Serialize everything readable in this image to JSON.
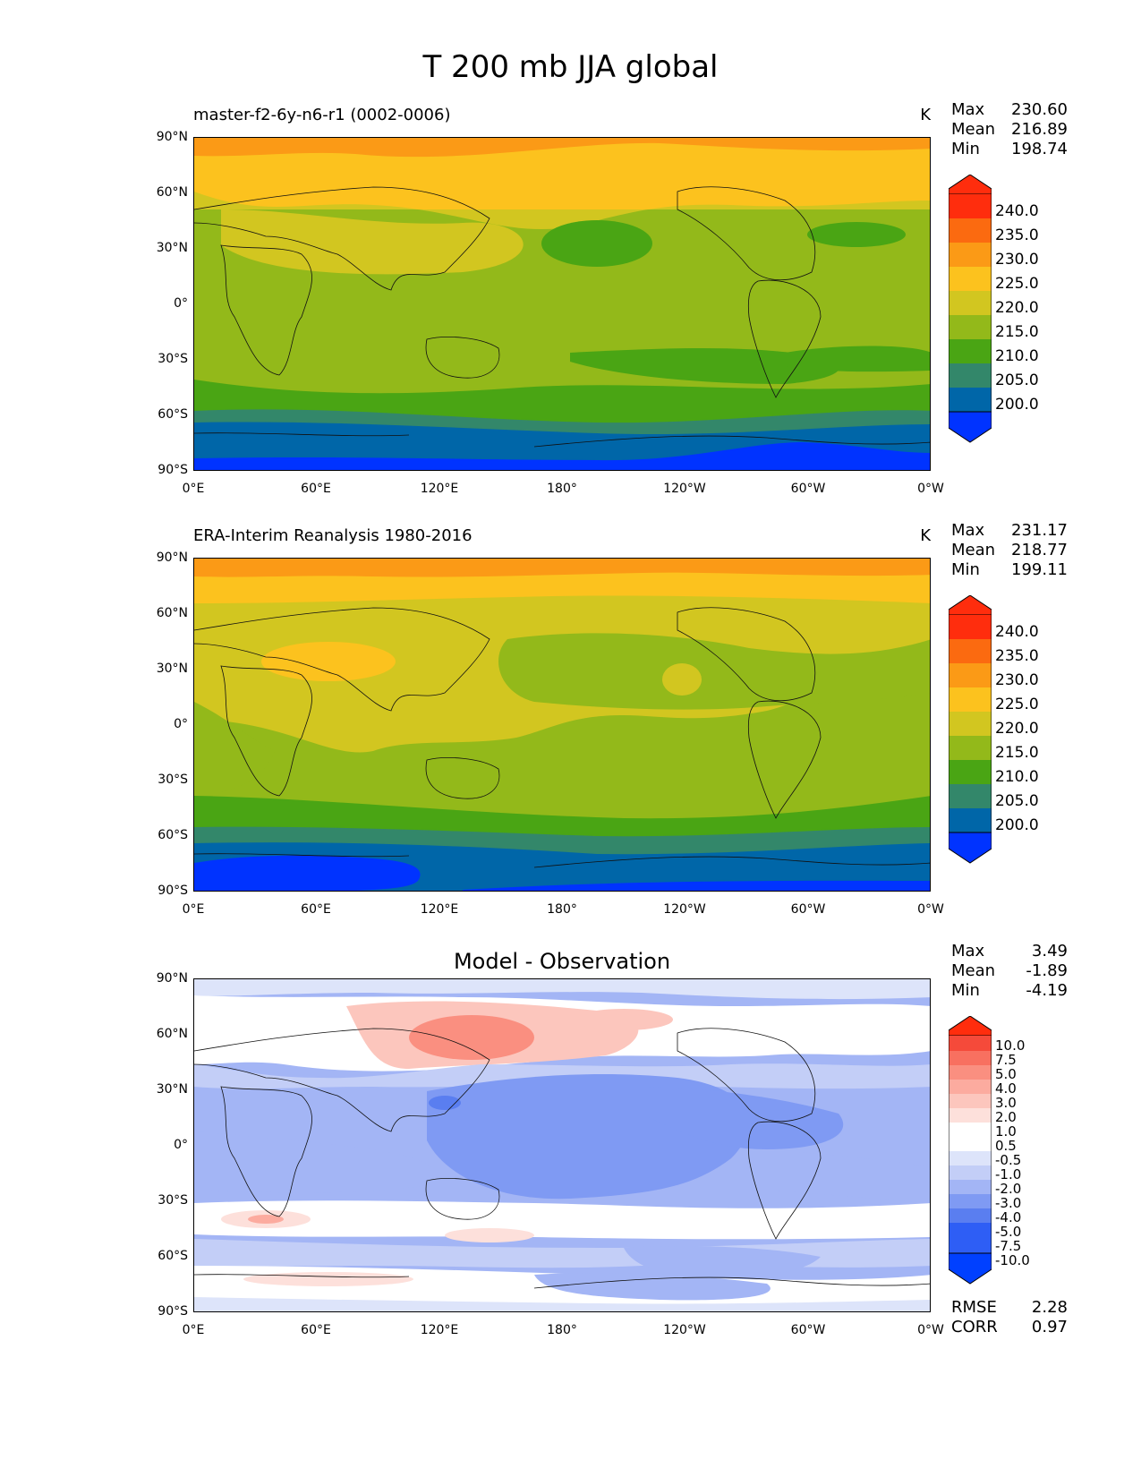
{
  "title": "T 200 mb JJA global",
  "axes": {
    "lat_ticks": [
      "90°N",
      "60°N",
      "30°N",
      "0°",
      "30°S",
      "60°S",
      "90°S"
    ],
    "lon_ticks": [
      "0°E",
      "60°E",
      "120°E",
      "180°",
      "120°W",
      "60°W",
      "0°W"
    ]
  },
  "panels": [
    {
      "name": "model",
      "title": "master-f2-6y-n6-r1 (0002-0006)",
      "units": "K",
      "stats": {
        "max_label": "Max",
        "max": "230.60",
        "mean_label": "Mean",
        "mean": "216.89",
        "min_label": "Min",
        "min": "198.74"
      },
      "colorbar": [
        "240.0",
        "235.0",
        "230.0",
        "225.0",
        "220.0",
        "215.0",
        "210.0",
        "205.0",
        "200.0"
      ]
    },
    {
      "name": "obs",
      "title": "ERA-Interim Reanalysis 1980-2016",
      "units": "K",
      "stats": {
        "max_label": "Max",
        "max": "231.17",
        "mean_label": "Mean",
        "mean": "218.77",
        "min_label": "Min",
        "min": "199.11"
      },
      "colorbar": [
        "240.0",
        "235.0",
        "230.0",
        "225.0",
        "220.0",
        "215.0",
        "210.0",
        "205.0",
        "200.0"
      ]
    },
    {
      "name": "diff",
      "title": "Model - Observation",
      "units": "",
      "stats": {
        "max_label": "Max",
        "max": "3.49",
        "mean_label": "Mean",
        "mean": "-1.89",
        "min_label": "Min",
        "min": "-4.19"
      },
      "colorbar": [
        "10.0",
        "7.5",
        "5.0",
        "4.0",
        "3.0",
        "2.0",
        "1.0",
        "0.5",
        "-0.5",
        "-1.0",
        "-2.0",
        "-3.0",
        "-4.0",
        "-5.0",
        "-7.5",
        "-10.0"
      ],
      "rmse_label": "RMSE",
      "rmse": "2.28",
      "corr_label": "CORR",
      "corr": "0.97"
    }
  ],
  "colors": {
    "temp_scale": [
      "#0033ff",
      "#0066a8",
      "#33876a",
      "#4aa514",
      "#93b91a",
      "#d2c620",
      "#fcc21e",
      "#fb9a16",
      "#fb6a10",
      "#ff2d0d"
    ],
    "diff_scale": [
      "#0040ff",
      "#2e5ef5",
      "#5a7ef0",
      "#7f9af3",
      "#a3b5f5",
      "#c3cef7",
      "#dde4fa",
      "#ffffff",
      "#ffffff",
      "#fde0db",
      "#fcc6bd",
      "#fcab9f",
      "#fa8f80",
      "#f87060",
      "#f54a3a",
      "#ff2d0d"
    ]
  }
}
